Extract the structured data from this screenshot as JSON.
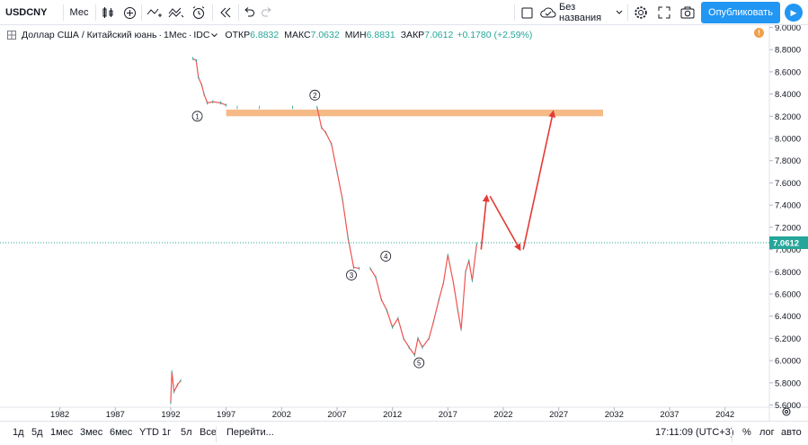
{
  "toolbar": {
    "symbol": "USDCNY",
    "interval": "Мес",
    "layout_name": "Без названия",
    "publish_label": "Опубликовать"
  },
  "legend": {
    "title": "Доллар США / Китайский юань",
    "interval": "1Мес",
    "source": "IDC",
    "open_label": "ОТКР",
    "open": "6.8832",
    "high_label": "МАКС",
    "high": "7.0632",
    "low_label": "МИН",
    "low": "6.8831",
    "close_label": "ЗАКР",
    "close": "7.0612",
    "change": "+0.1780 (+2.59%)"
  },
  "chart_data": {
    "type": "line",
    "x_ticks": [
      "1982",
      "1987",
      "1992",
      "1997",
      "2002",
      "2007",
      "2012",
      "2017",
      "2022",
      "2027",
      "2032",
      "2037",
      "2042"
    ],
    "y_ticks": [
      "9.0000",
      "8.8000",
      "8.6000",
      "8.4000",
      "8.2000",
      "8.0000",
      "7.8000",
      "7.6000",
      "7.4000",
      "7.2000",
      "7.0000",
      "6.8000",
      "6.6000",
      "6.4000",
      "6.2000",
      "6.0000",
      "5.8000",
      "5.6000"
    ],
    "ylim": [
      5.58,
      9.02
    ],
    "xlim": [
      1976.6,
      2046.0
    ],
    "last_price": "7.0612",
    "last_value": 7.0612,
    "series": [
      {
        "color": "#ef5350",
        "points": [
          [
            1992.0,
            5.62
          ],
          [
            1992.1,
            5.9
          ],
          [
            1992.3,
            5.72
          ],
          [
            1992.6,
            5.78
          ],
          [
            1992.9,
            5.82
          ],
          [
            1994.0,
            8.72
          ],
          [
            1994.3,
            8.7
          ],
          [
            1994.5,
            8.55
          ],
          [
            1994.8,
            8.48
          ],
          [
            1995.0,
            8.4
          ],
          [
            1995.3,
            8.32
          ],
          [
            1995.8,
            8.33
          ],
          [
            1996.5,
            8.32
          ],
          [
            1997.0,
            8.3
          ],
          [
            1998.0,
            8.28
          ],
          [
            2000.0,
            8.28
          ],
          [
            2003.0,
            8.28
          ],
          [
            2005.2,
            8.28
          ],
          [
            2005.6,
            8.1
          ],
          [
            2006.0,
            8.05
          ],
          [
            2006.5,
            7.95
          ],
          [
            2007.0,
            7.7
          ],
          [
            2007.5,
            7.45
          ],
          [
            2008.0,
            7.1
          ],
          [
            2008.5,
            6.84
          ],
          [
            2009.0,
            6.83
          ],
          [
            2010.0,
            6.83
          ],
          [
            2010.5,
            6.75
          ],
          [
            2011.0,
            6.55
          ],
          [
            2011.5,
            6.45
          ],
          [
            2012.0,
            6.3
          ],
          [
            2012.5,
            6.38
          ],
          [
            2013.0,
            6.2
          ],
          [
            2013.5,
            6.12
          ],
          [
            2014.0,
            6.05
          ],
          [
            2014.3,
            6.2
          ],
          [
            2014.7,
            6.12
          ],
          [
            2015.3,
            6.2
          ],
          [
            2015.7,
            6.35
          ],
          [
            2016.2,
            6.55
          ],
          [
            2016.6,
            6.7
          ],
          [
            2017.0,
            6.95
          ],
          [
            2017.5,
            6.7
          ],
          [
            2017.9,
            6.45
          ],
          [
            2018.2,
            6.28
          ],
          [
            2018.6,
            6.8
          ],
          [
            2018.9,
            6.9
          ],
          [
            2019.2,
            6.72
          ],
          [
            2019.6,
            7.05
          ]
        ]
      }
    ],
    "annotations": {
      "labels": [
        {
          "text": "1",
          "x": 1994.4,
          "y": 8.2
        },
        {
          "text": "2",
          "x": 2005.0,
          "y": 8.39
        },
        {
          "text": "3",
          "x": 2008.3,
          "y": 6.77
        },
        {
          "text": "4",
          "x": 2011.4,
          "y": 6.94
        },
        {
          "text": "5",
          "x": 2014.4,
          "y": 5.98
        }
      ],
      "zone": {
        "x1": 1997.0,
        "x2": 2031.0,
        "y1": 8.2,
        "y2": 8.26
      },
      "forecast_path": [
        [
          2020.0,
          7.0
        ],
        [
          2020.5,
          7.48
        ],
        [
          2023.5,
          7.0
        ],
        [
          2026.5,
          8.24
        ]
      ],
      "forecast_segments": [
        [
          [
            2020.0,
            7.0
          ],
          [
            2020.5,
            7.48
          ]
        ],
        [
          [
            2020.8,
            7.48
          ],
          [
            2023.5,
            7.0
          ]
        ],
        [
          [
            2023.8,
            7.0
          ],
          [
            2026.5,
            8.24
          ]
        ]
      ]
    }
  },
  "bottom": {
    "ranges": [
      "1д",
      "5д",
      "1мес",
      "3мес",
      "6мес",
      "YTD",
      "1г",
      "5л",
      "Все"
    ],
    "goto": "Перейти...",
    "time": "17:11:09 (UTC+3)",
    "percent": "%",
    "log": "лог",
    "auto": "авто"
  }
}
